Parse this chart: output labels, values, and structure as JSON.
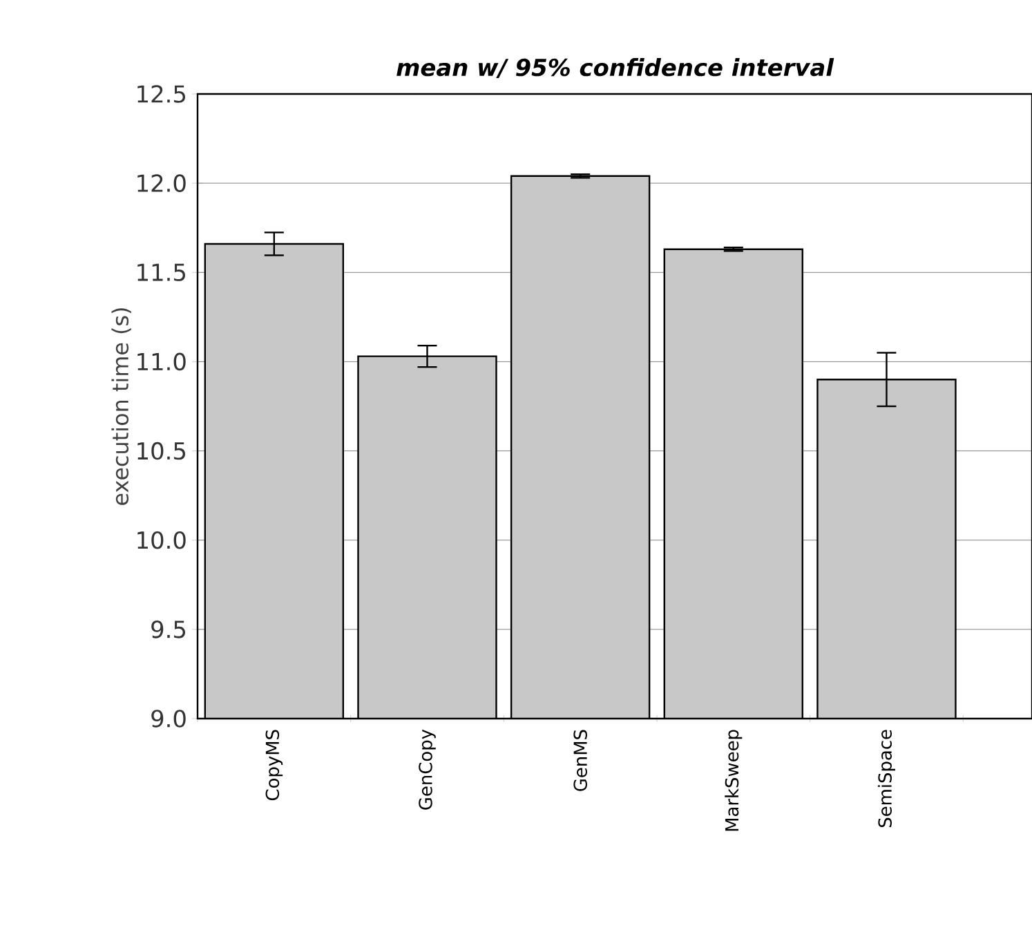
{
  "chart_data": {
    "type": "bar",
    "title": "mean w/ 95% confidence interval",
    "ylabel": "execution time (s)",
    "categories": [
      "CopyMS",
      "GenCopy",
      "GenMS",
      "MarkSweep",
      "SemiSpace"
    ],
    "values": [
      11.66,
      11.03,
      12.04,
      11.63,
      10.9
    ],
    "errors": [
      0.064,
      0.06,
      0.01,
      0.01,
      0.15
    ],
    "color": "#c8c8c8",
    "ylim": [
      9.0,
      12.5
    ],
    "yticks": [
      {
        "value": 9.0,
        "label": "9.0"
      },
      {
        "value": 9.5,
        "label": "9.5"
      },
      {
        "value": 10.0,
        "label": "10.0"
      },
      {
        "value": 10.5,
        "label": "10.5"
      },
      {
        "value": 11.0,
        "label": "11.0"
      },
      {
        "value": 11.5,
        "label": "11.5"
      },
      {
        "value": 12.0,
        "label": "12.0"
      },
      {
        "value": 12.5,
        "label": "12.5"
      }
    ],
    "grid": "y"
  }
}
